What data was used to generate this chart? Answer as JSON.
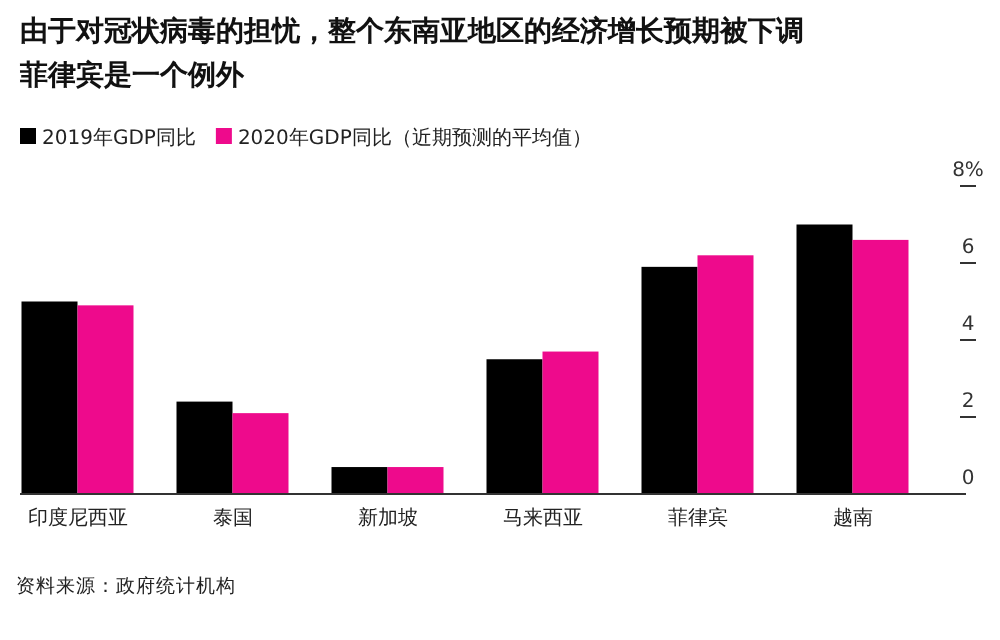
{
  "chart_data": {
    "type": "bar",
    "title": "由于对冠状病毒的担忧，整个东南亚地区的经济增长预期被下调",
    "subtitle": "菲律宾是一个例外",
    "categories": [
      "印度尼西亚",
      "泰国",
      "新加坡",
      "马来西亚",
      "菲律宾",
      "越南"
    ],
    "series": [
      {
        "name": "2019年GDP同比",
        "color": "#000000",
        "values": [
          5.0,
          2.4,
          0.7,
          3.5,
          5.9,
          7.0
        ]
      },
      {
        "name": "2020年GDP同比（近期预测的平均值）",
        "color": "#ee0a8c",
        "values": [
          4.9,
          2.1,
          0.7,
          3.7,
          6.2,
          6.6
        ]
      }
    ],
    "ylim": [
      0,
      8
    ],
    "yticks": [
      0,
      2,
      4,
      6,
      {
        "value": 8,
        "label": "8%"
      }
    ],
    "legend": "top left",
    "annotations": [
      "资料来源：政府统计机构"
    ]
  }
}
